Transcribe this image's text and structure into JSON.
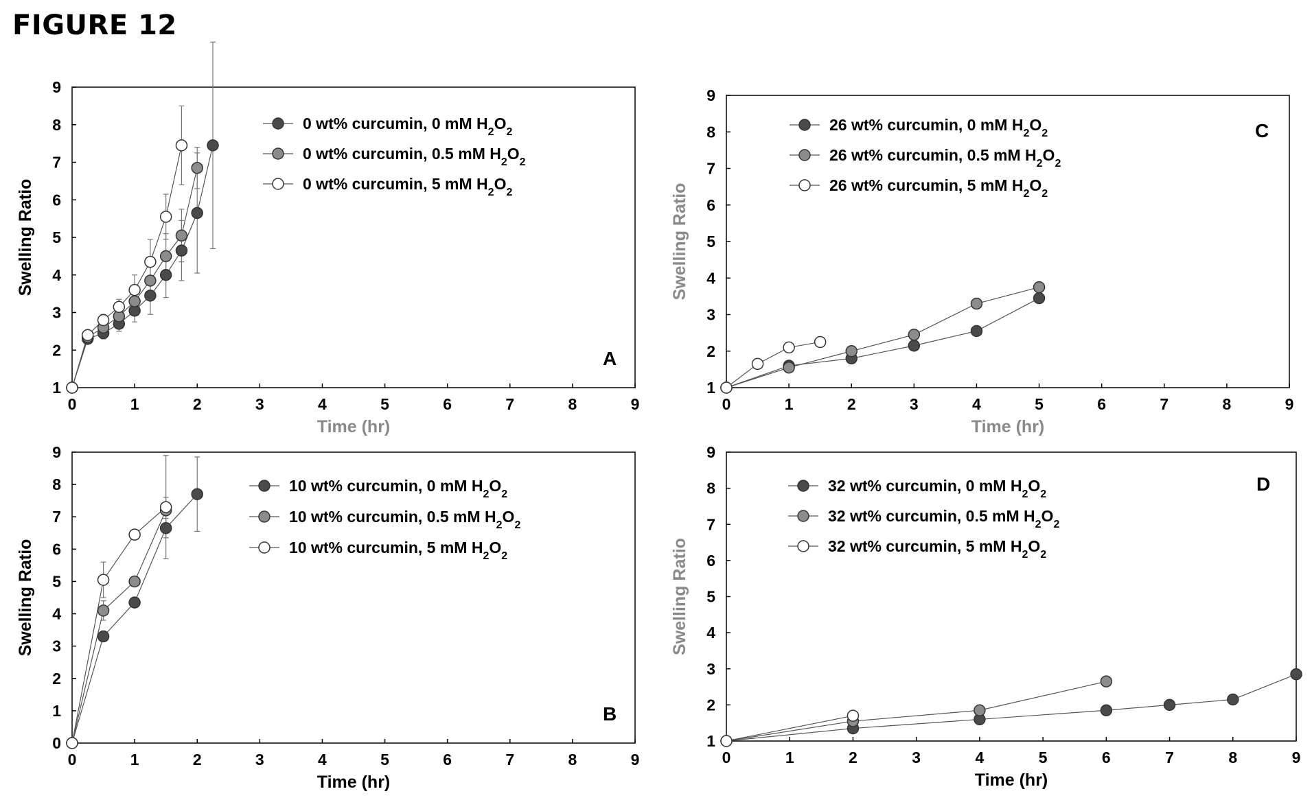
{
  "figure_title": "FIGURE 12",
  "colors": {
    "dark": "#4a4a4a",
    "mid": "#8c8c8c",
    "light": "#ffffff",
    "line": "#555555"
  },
  "chart_data": [
    {
      "panel": "A",
      "type": "scatter",
      "xlabel": "Time (hr)",
      "ylabel": "Swelling Ratio",
      "xlim": [
        0,
        9
      ],
      "ylim": [
        1,
        9
      ],
      "xticks": [
        0,
        1,
        2,
        3,
        4,
        5,
        6,
        7,
        8,
        9
      ],
      "yticks": [
        1,
        2,
        3,
        4,
        5,
        6,
        7,
        8,
        9
      ],
      "legend_position": "top-right",
      "series": [
        {
          "name": "0 wt% curcumin, 0 mM H₂O₂",
          "style": "dark",
          "x": [
            0,
            0.25,
            0.5,
            0.75,
            1,
            1.25,
            1.5,
            1.75,
            2,
            2.25
          ],
          "y": [
            1,
            2.3,
            2.45,
            2.7,
            3.05,
            3.45,
            4.0,
            4.65,
            5.65,
            7.45
          ],
          "err": [
            0,
            0.1,
            0.15,
            0.2,
            0.3,
            0.5,
            0.6,
            0.8,
            1.6,
            2.75
          ]
        },
        {
          "name": "0 wt% curcumin, 0.5 mM H₂O₂",
          "style": "mid",
          "x": [
            0,
            0.25,
            0.5,
            0.75,
            1,
            1.25,
            1.5,
            1.75,
            2
          ],
          "y": [
            1,
            2.35,
            2.6,
            2.9,
            3.3,
            3.85,
            4.5,
            5.05,
            6.85
          ],
          "err": [
            0,
            0.1,
            0.15,
            0.2,
            0.3,
            0.5,
            0.6,
            0.7,
            0.55
          ]
        },
        {
          "name": "0 wt% curcumin, 5 mM H₂O₂",
          "style": "light",
          "x": [
            0,
            0.25,
            0.5,
            0.75,
            1,
            1.25,
            1.5,
            1.75
          ],
          "y": [
            1,
            2.4,
            2.8,
            3.15,
            3.6,
            4.35,
            5.55,
            7.45
          ],
          "err": [
            0,
            0.1,
            0.15,
            0.2,
            0.4,
            0.6,
            0.6,
            1.05
          ]
        }
      ]
    },
    {
      "panel": "B",
      "type": "scatter",
      "xlabel": "Time (hr)",
      "ylabel": "Swelling Ratio",
      "xlim": [
        0,
        9
      ],
      "ylim": [
        0,
        9
      ],
      "xticks": [
        0,
        1,
        2,
        3,
        4,
        5,
        6,
        7,
        8,
        9
      ],
      "yticks": [
        0,
        1,
        2,
        3,
        4,
        5,
        6,
        7,
        8,
        9
      ],
      "legend_position": "top-right",
      "series": [
        {
          "name": "10 wt% curcumin, 0 mM H₂O₂",
          "style": "dark",
          "x": [
            0,
            0.5,
            1,
            1.5,
            2
          ],
          "y": [
            0,
            3.3,
            4.35,
            6.65,
            7.7
          ],
          "err": [
            0,
            0,
            0,
            0.3,
            1.15
          ]
        },
        {
          "name": "10 wt% curcumin, 0.5 mM H₂O₂",
          "style": "mid",
          "x": [
            0,
            0.5,
            1,
            1.5
          ],
          "y": [
            0,
            4.1,
            5.0,
            7.2
          ],
          "err": [
            0,
            0.3,
            0,
            0.4
          ]
        },
        {
          "name": "10 wt% curcumin, 5 mM H₂O₂",
          "style": "light",
          "x": [
            0,
            0.5,
            1,
            1.5
          ],
          "y": [
            0,
            5.05,
            6.45,
            7.3
          ],
          "err": [
            0,
            0.55,
            0,
            1.6
          ]
        }
      ]
    },
    {
      "panel": "C",
      "type": "scatter",
      "xlabel": "Time (hr)",
      "ylabel": "Swelling Ratio",
      "xlim": [
        0,
        9
      ],
      "ylim": [
        1,
        9
      ],
      "xticks": [
        0,
        1,
        2,
        3,
        4,
        5,
        6,
        7,
        8,
        9
      ],
      "yticks": [
        1,
        2,
        3,
        4,
        5,
        6,
        7,
        8,
        9
      ],
      "legend_position": "top-left",
      "series": [
        {
          "name": "26 wt% curcumin, 0 mM H₂O₂",
          "style": "dark",
          "x": [
            0,
            1,
            2,
            3,
            4,
            5
          ],
          "y": [
            1,
            1.6,
            1.8,
            2.15,
            2.55,
            3.45
          ]
        },
        {
          "name": "26 wt% curcumin, 0.5 mM H₂O₂",
          "style": "mid",
          "x": [
            0,
            1,
            2,
            3,
            4,
            5
          ],
          "y": [
            1,
            1.55,
            2.0,
            2.45,
            3.3,
            3.75
          ]
        },
        {
          "name": "26 wt% curcumin, 5 mM H₂O₂",
          "style": "light",
          "x": [
            0,
            0.5,
            1,
            1.5
          ],
          "y": [
            1,
            1.65,
            2.1,
            2.25
          ]
        }
      ]
    },
    {
      "panel": "D",
      "type": "scatter",
      "xlabel": "Time (hr)",
      "ylabel": "Swelling Ratio",
      "xlim": [
        0,
        9
      ],
      "ylim": [
        1,
        9
      ],
      "xticks": [
        0,
        1,
        2,
        3,
        4,
        5,
        6,
        7,
        8,
        9
      ],
      "yticks": [
        1,
        2,
        3,
        4,
        5,
        6,
        7,
        8,
        9
      ],
      "legend_position": "top-left",
      "series": [
        {
          "name": "32 wt% curcumin, 0 mM H₂O₂",
          "style": "dark",
          "x": [
            0,
            2,
            4,
            6,
            7,
            8,
            9
          ],
          "y": [
            1,
            1.35,
            1.6,
            1.85,
            2.0,
            2.15,
            2.85
          ]
        },
        {
          "name": "32 wt% curcumin, 0.5 mM H₂O₂",
          "style": "mid",
          "x": [
            0,
            2,
            4,
            6
          ],
          "y": [
            1,
            1.55,
            1.85,
            2.65
          ]
        },
        {
          "name": "32 wt% curcumin, 5 mM H₂O₂",
          "style": "light",
          "x": [
            0,
            2
          ],
          "y": [
            1,
            1.7
          ]
        }
      ]
    }
  ]
}
